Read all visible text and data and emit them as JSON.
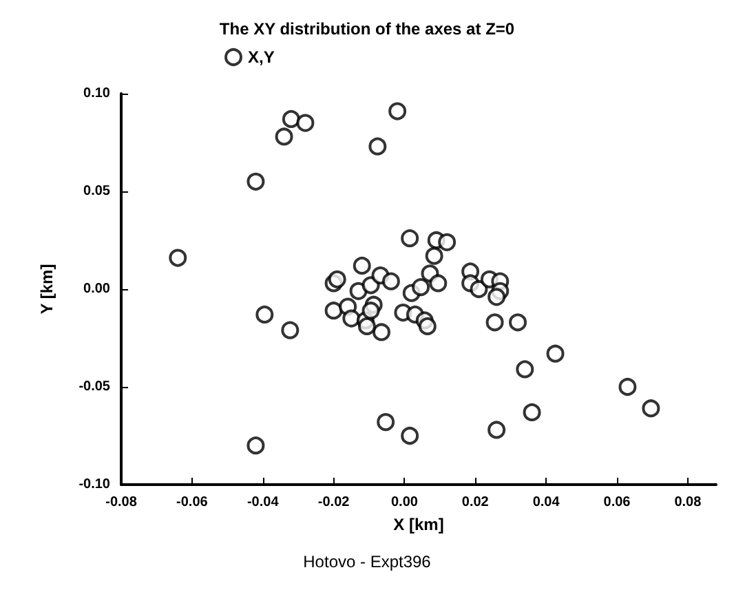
{
  "chart_data": {
    "type": "scatter",
    "title": "The XY distribution of the axes at Z=0",
    "xlabel": "X [km]",
    "ylabel": "Y [km]",
    "annotations": [
      "Hotovo - Expt396"
    ],
    "xlim": [
      -0.08,
      0.088
    ],
    "ylim": [
      -0.1,
      0.1
    ],
    "xticks": [
      {
        "value": -0.08,
        "label": "-0.08"
      },
      {
        "value": -0.06,
        "label": "-0.06"
      },
      {
        "value": -0.04,
        "label": "-0.04"
      },
      {
        "value": -0.02,
        "label": "-0.02"
      },
      {
        "value": 0,
        "label": "0.00"
      },
      {
        "value": 0.02,
        "label": "0.02"
      },
      {
        "value": 0.04,
        "label": "0.04"
      },
      {
        "value": 0.06,
        "label": "0.06"
      },
      {
        "value": 0.08,
        "label": "0.08"
      }
    ],
    "yticks": [
      {
        "value": -0.1,
        "label": "-0.10"
      },
      {
        "value": -0.05,
        "label": "-0.05"
      },
      {
        "value": 0,
        "label": "0.00"
      },
      {
        "value": 0.05,
        "label": "0.05"
      },
      {
        "value": 0.1,
        "label": "0.10"
      }
    ],
    "grid": false,
    "legend": "top",
    "marker": "circle",
    "series": [
      {
        "name": "X,Y",
        "color": "#000000",
        "x": [
          -0.064,
          -0.032,
          -0.028,
          -0.034,
          -0.002,
          -0.0076,
          -0.042,
          0.0015,
          -0.012,
          -0.02,
          -0.019,
          -0.013,
          -0.0095,
          -0.0068,
          -0.0038,
          0.002,
          0.0046,
          -0.0395,
          0.009,
          0.012,
          0.0084,
          0.0072,
          0.0095,
          0.0186,
          0.0186,
          0.021,
          0.024,
          0.027,
          0.027,
          0.026,
          -0.0004,
          0.003,
          0.0057,
          0.0065,
          -0.0065,
          0.0255,
          0.032,
          0.0426,
          0.034,
          0.063,
          0.0696,
          0.036,
          0.026,
          -0.0053,
          0.0015,
          -0.0323,
          -0.042,
          -0.02,
          -0.016,
          -0.015,
          -0.0087,
          -0.011,
          -0.0106,
          -0.0095
        ],
        "values": [
          0.016,
          0.087,
          0.085,
          0.078,
          0.091,
          0.073,
          0.055,
          0.026,
          0.012,
          0.003,
          0.005,
          -0.001,
          0.002,
          0.007,
          0.004,
          -0.002,
          0.001,
          -0.013,
          0.025,
          0.024,
          0.017,
          0.008,
          0.003,
          0.009,
          0.003,
          0.0,
          0.005,
          0.004,
          -0.001,
          -0.004,
          -0.012,
          -0.013,
          -0.016,
          -0.019,
          -0.022,
          -0.017,
          -0.017,
          -0.033,
          -0.041,
          -0.05,
          -0.061,
          -0.063,
          -0.072,
          -0.068,
          -0.075,
          -0.021,
          -0.08,
          -0.011,
          -0.009,
          -0.015,
          -0.008,
          -0.016,
          -0.019,
          -0.011
        ]
      }
    ]
  }
}
